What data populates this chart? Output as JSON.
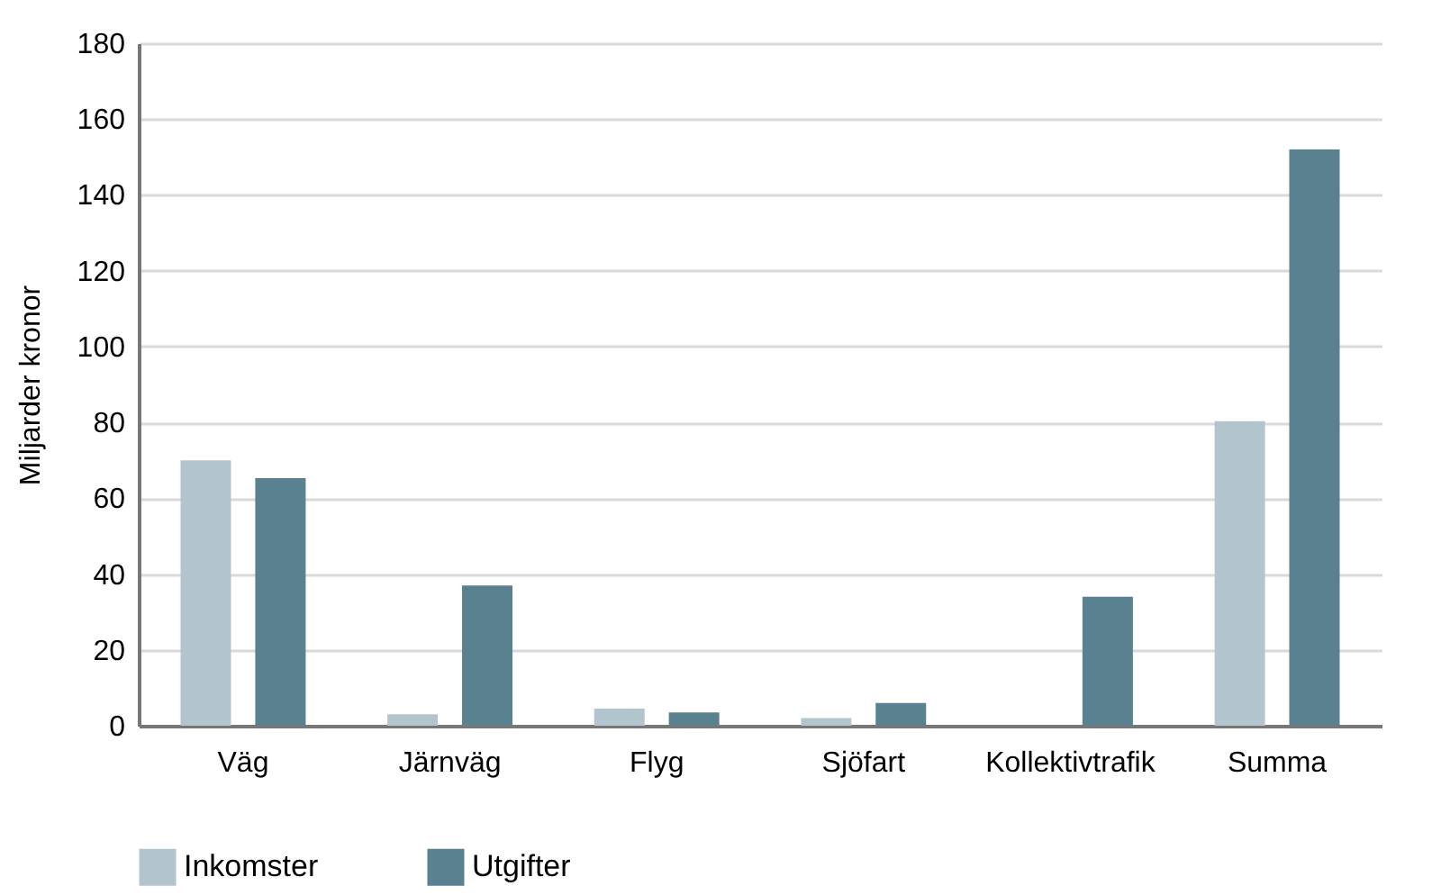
{
  "chart_data": {
    "type": "bar",
    "ylabel": "Miljarder kronor",
    "categories": [
      "Väg",
      "Järnväg",
      "Flyg",
      "Sjöfart",
      "Kollektivtrafik",
      "Summa"
    ],
    "series": [
      {
        "name": "Inkomster",
        "color": "#b3c5cc",
        "values": [
          70,
          3,
          4.5,
          2,
          null,
          80.3
        ]
      },
      {
        "name": "Utgifter",
        "color": "#5a818f",
        "values": [
          65.3,
          37,
          3.5,
          6,
          34,
          152
        ]
      }
    ],
    "ylim": [
      0,
      180
    ],
    "yticks": [
      0,
      20,
      40,
      60,
      80,
      100,
      120,
      140,
      160,
      180
    ],
    "grid": "y",
    "legend": "bottom"
  }
}
